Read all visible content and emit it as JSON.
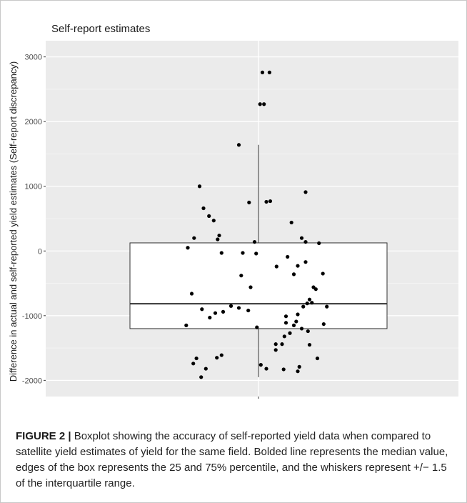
{
  "caption": {
    "label": "FIGURE 2 |",
    "text": " Boxplot showing the accuracy of self-reported yield data when compared to satellite yield estimates of yield for the same field. Bolded line represents the median value, edges of the box represents the 25 and 75% percentile, and the whiskers represent +/− 1.5 of the interquartile range."
  },
  "chart_data": {
    "type": "boxplot",
    "title": "Self-report estimates",
    "xlabel": "",
    "ylabel": "Difference in actual and self-reported yield estimates (Self-report discrepancy)",
    "ylim": [
      -2250,
      3250
    ],
    "yticks": [
      -2000,
      -1000,
      0,
      1000,
      2000,
      3000
    ],
    "ytick_labels": [
      "-2000",
      "-1000",
      "0",
      "1000",
      "2000",
      "3000"
    ],
    "grid": true,
    "box": {
      "q1": -1200,
      "median": -815,
      "q3": 125,
      "whisker_low": -1950,
      "whisker_high": 1640
    },
    "points": [
      [
        0.05,
        2760
      ],
      [
        0.14,
        2760
      ],
      [
        0.02,
        2270
      ],
      [
        0.07,
        2270
      ],
      [
        -0.25,
        1640
      ],
      [
        -0.75,
        1000
      ],
      [
        -0.7,
        660
      ],
      [
        -0.63,
        540
      ],
      [
        -0.57,
        470
      ],
      [
        -0.12,
        750
      ],
      [
        0.1,
        760
      ],
      [
        0.15,
        770
      ],
      [
        0.6,
        910
      ],
      [
        0.42,
        440
      ],
      [
        -0.5,
        240
      ],
      [
        -0.52,
        180
      ],
      [
        -0.82,
        200
      ],
      [
        -0.05,
        140
      ],
      [
        0.55,
        200
      ],
      [
        0.6,
        140
      ],
      [
        0.77,
        120
      ],
      [
        -0.9,
        50
      ],
      [
        -0.47,
        -30
      ],
      [
        -0.2,
        -30
      ],
      [
        -0.03,
        -40
      ],
      [
        0.37,
        -90
      ],
      [
        0.23,
        -240
      ],
      [
        0.5,
        -230
      ],
      [
        0.6,
        -170
      ],
      [
        0.45,
        -360
      ],
      [
        0.82,
        -350
      ],
      [
        -0.22,
        -380
      ],
      [
        -0.1,
        -560
      ],
      [
        0.7,
        -560
      ],
      [
        0.73,
        -590
      ],
      [
        -0.85,
        -660
      ],
      [
        0.65,
        -750
      ],
      [
        0.68,
        -800
      ],
      [
        0.62,
        -810
      ],
      [
        0.57,
        -860
      ],
      [
        0.87,
        -860
      ],
      [
        -0.35,
        -850
      ],
      [
        -0.25,
        -880
      ],
      [
        -0.13,
        -920
      ],
      [
        -0.72,
        -900
      ],
      [
        -0.55,
        -960
      ],
      [
        -0.45,
        -940
      ],
      [
        -0.62,
        -1030
      ],
      [
        0.5,
        -980
      ],
      [
        0.35,
        -1010
      ],
      [
        0.48,
        -1090
      ],
      [
        0.35,
        -1110
      ],
      [
        0.45,
        -1150
      ],
      [
        0.83,
        -1130
      ],
      [
        -0.02,
        -1180
      ],
      [
        0.55,
        -1200
      ],
      [
        0.63,
        -1240
      ],
      [
        0.4,
        -1270
      ],
      [
        -0.92,
        -1150
      ],
      [
        0.33,
        -1320
      ],
      [
        0.22,
        -1440
      ],
      [
        0.3,
        -1440
      ],
      [
        0.65,
        -1450
      ],
      [
        0.22,
        -1530
      ],
      [
        -0.47,
        -1610
      ],
      [
        -0.53,
        -1650
      ],
      [
        -0.79,
        -1660
      ],
      [
        0.75,
        -1660
      ],
      [
        -0.83,
        -1740
      ],
      [
        0.03,
        -1760
      ],
      [
        -0.67,
        -1820
      ],
      [
        0.1,
        -1820
      ],
      [
        0.32,
        -1830
      ],
      [
        0.52,
        -1790
      ],
      [
        0.5,
        -1860
      ],
      [
        -0.73,
        -1950
      ]
    ]
  }
}
